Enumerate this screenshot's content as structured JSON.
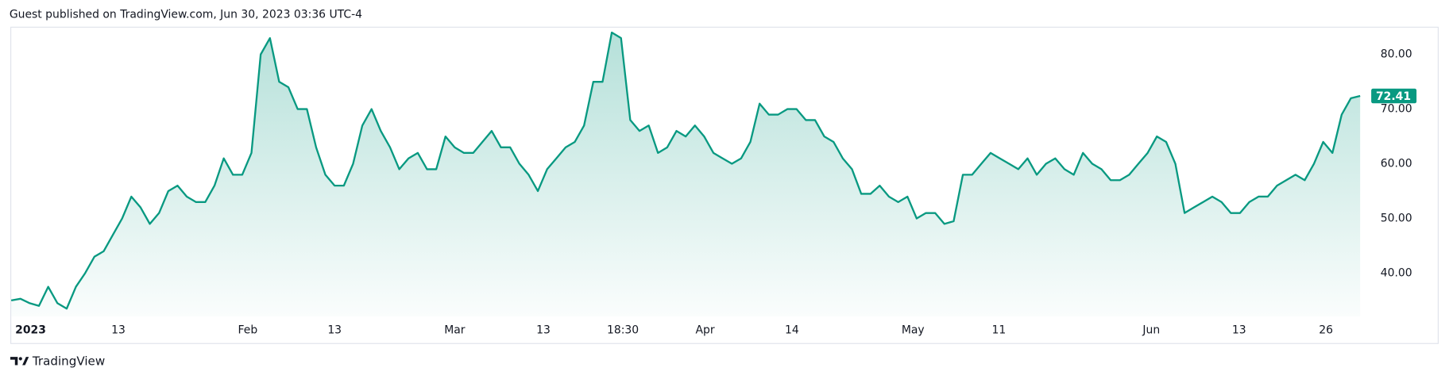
{
  "header": "Guest published on TradingView.com, Jun 30, 2023 03:36 UTC-4",
  "brand": "TradingView",
  "chart_data": {
    "type": "area",
    "color": "#089981",
    "values": [
      35,
      35.3,
      34.5,
      34,
      37.5,
      34.5,
      33.5,
      37.5,
      40,
      43,
      44,
      47,
      50,
      54,
      52,
      49,
      51,
      55,
      56,
      54,
      53,
      53,
      56,
      61,
      58,
      58,
      62,
      80,
      83,
      75,
      74,
      70,
      70,
      63,
      58,
      56,
      56,
      60,
      67,
      70,
      66,
      63,
      59,
      61,
      62,
      59,
      59,
      65,
      63,
      62,
      62,
      64,
      66,
      63,
      63,
      60,
      58,
      55,
      59,
      61,
      63,
      64,
      67,
      75,
      75,
      84,
      83,
      68,
      66,
      67,
      62,
      63,
      66,
      65,
      67,
      65,
      62,
      61,
      60,
      61,
      64,
      71,
      69,
      69,
      70,
      70,
      68,
      68,
      65,
      64,
      61,
      59,
      54.5,
      54.5,
      56,
      54,
      53,
      54,
      50,
      51,
      51,
      49,
      49.5,
      58,
      58,
      60,
      62,
      61,
      60,
      59,
      61,
      58,
      60,
      61,
      59,
      58,
      62,
      60,
      59,
      57,
      57,
      58,
      60,
      62,
      65,
      64,
      60,
      51,
      52,
      53,
      54,
      53,
      51,
      51,
      53,
      54,
      54,
      56,
      57,
      58,
      57,
      60,
      64,
      62,
      69,
      72,
      72.41
    ],
    "xlim": [
      0,
      147
    ],
    "xticks": [
      {
        "value": 2.1,
        "label": "2023"
      },
      {
        "value": 11.6,
        "label": "13"
      },
      {
        "value": 25.6,
        "label": "Feb"
      },
      {
        "value": 35,
        "label": "13"
      },
      {
        "value": 48,
        "label": "Mar"
      },
      {
        "value": 57.6,
        "label": "13"
      },
      {
        "value": 66.2,
        "label": "18:30"
      },
      {
        "value": 75.1,
        "label": "Apr"
      },
      {
        "value": 84.5,
        "label": "14"
      },
      {
        "value": 97.6,
        "label": "May"
      },
      {
        "value": 106.9,
        "label": "11"
      },
      {
        "value": 123.4,
        "label": "Jun"
      },
      {
        "value": 132.9,
        "label": "13"
      },
      {
        "value": 142.3,
        "label": "26"
      }
    ],
    "ylim": [
      32.1,
      84.9
    ],
    "yticks": [
      {
        "value": 40,
        "label": "40.00"
      },
      {
        "value": 50,
        "label": "50.00"
      },
      {
        "value": 60,
        "label": "60.00"
      },
      {
        "value": 70,
        "label": "70.00"
      },
      {
        "value": 80,
        "label": "80.00"
      }
    ]
  }
}
